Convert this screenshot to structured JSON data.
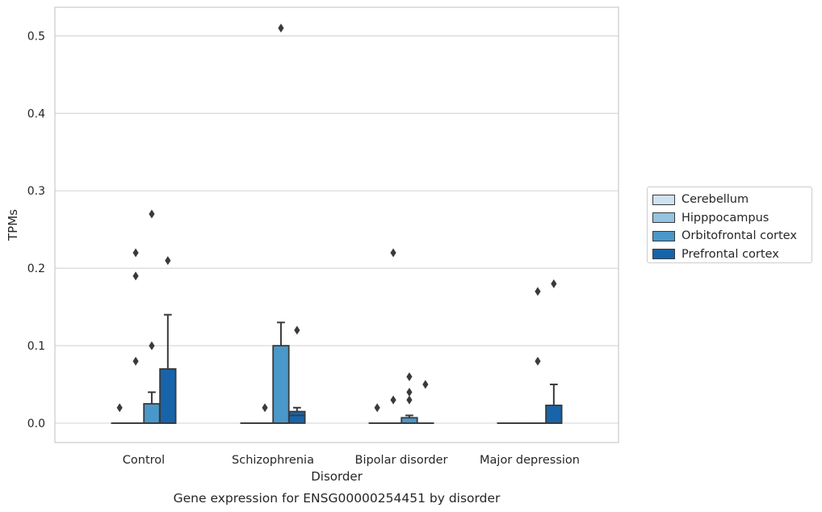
{
  "chart_data": {
    "type": "box",
    "title": "Gene expression for ENSG00000254451 by disorder",
    "xlabel": "Disorder",
    "ylabel": "TPMs",
    "ylim": [
      -0.025,
      0.535
    ],
    "yticks": [
      "0.0",
      "0.1",
      "0.2",
      "0.3",
      "0.4",
      "0.5"
    ],
    "categories": [
      "Control",
      "Schizophrenia",
      "Bipolar disorder",
      "Major depression"
    ],
    "grid": "y",
    "legend_position": "right",
    "series": [
      {
        "name": "Cerebellum",
        "color": "#d0e1f2",
        "boxes": [
          {
            "q1": 0,
            "median": 0,
            "q3": 0,
            "whisker_low": 0,
            "whisker_high": 0,
            "outliers": [
              0.02
            ]
          },
          {
            "q1": 0,
            "median": 0,
            "q3": 0,
            "whisker_low": 0,
            "whisker_high": 0,
            "outliers": []
          },
          {
            "q1": 0,
            "median": 0,
            "q3": 0,
            "whisker_low": 0,
            "whisker_high": 0,
            "outliers": [
              0.02
            ]
          },
          {
            "q1": 0,
            "median": 0,
            "q3": 0,
            "whisker_low": 0,
            "whisker_high": 0,
            "outliers": []
          }
        ]
      },
      {
        "name": "Hipppocampus",
        "color": "#94c4df",
        "boxes": [
          {
            "q1": 0,
            "median": 0,
            "q3": 0,
            "whisker_low": 0,
            "whisker_high": 0,
            "outliers": [
              0.08,
              0.19,
              0.22
            ]
          },
          {
            "q1": 0,
            "median": 0,
            "q3": 0,
            "whisker_low": 0,
            "whisker_high": 0,
            "outliers": [
              0.02
            ]
          },
          {
            "q1": 0,
            "median": 0,
            "q3": 0,
            "whisker_low": 0,
            "whisker_high": 0,
            "outliers": [
              0.03,
              0.22
            ]
          },
          {
            "q1": 0,
            "median": 0,
            "q3": 0,
            "whisker_low": 0,
            "whisker_high": 0,
            "outliers": []
          }
        ]
      },
      {
        "name": "Orbitofrontal cortex",
        "color": "#4a98c9",
        "boxes": [
          {
            "q1": 0,
            "median": 0,
            "q3": 0.025,
            "whisker_low": 0,
            "whisker_high": 0.04,
            "outliers": [
              0.1,
              0.27
            ]
          },
          {
            "q1": 0,
            "median": 0,
            "q3": 0.1,
            "whisker_low": 0,
            "whisker_high": 0.13,
            "outliers": [
              0.51
            ]
          },
          {
            "q1": 0,
            "median": 0,
            "q3": 0.007,
            "whisker_low": 0,
            "whisker_high": 0.01,
            "outliers": [
              0.03,
              0.04,
              0.06
            ]
          },
          {
            "q1": 0,
            "median": 0,
            "q3": 0,
            "whisker_low": 0,
            "whisker_high": 0,
            "outliers": [
              0.08,
              0.17
            ]
          }
        ]
      },
      {
        "name": "Prefrontal cortex",
        "color": "#1764ab",
        "boxes": [
          {
            "q1": 0,
            "median": 0,
            "q3": 0.07,
            "whisker_low": 0,
            "whisker_high": 0.14,
            "outliers": [
              0.21
            ]
          },
          {
            "q1": 0,
            "median": 0.01,
            "q3": 0.015,
            "whisker_low": 0,
            "whisker_high": 0.02,
            "outliers": [
              0.12
            ]
          },
          {
            "q1": 0,
            "median": 0,
            "q3": 0,
            "whisker_low": 0,
            "whisker_high": 0,
            "outliers": [
              0.05
            ]
          },
          {
            "q1": 0,
            "median": 0,
            "q3": 0.023,
            "whisker_low": 0,
            "whisker_high": 0.05,
            "outliers": [
              0.18
            ]
          }
        ]
      }
    ]
  }
}
